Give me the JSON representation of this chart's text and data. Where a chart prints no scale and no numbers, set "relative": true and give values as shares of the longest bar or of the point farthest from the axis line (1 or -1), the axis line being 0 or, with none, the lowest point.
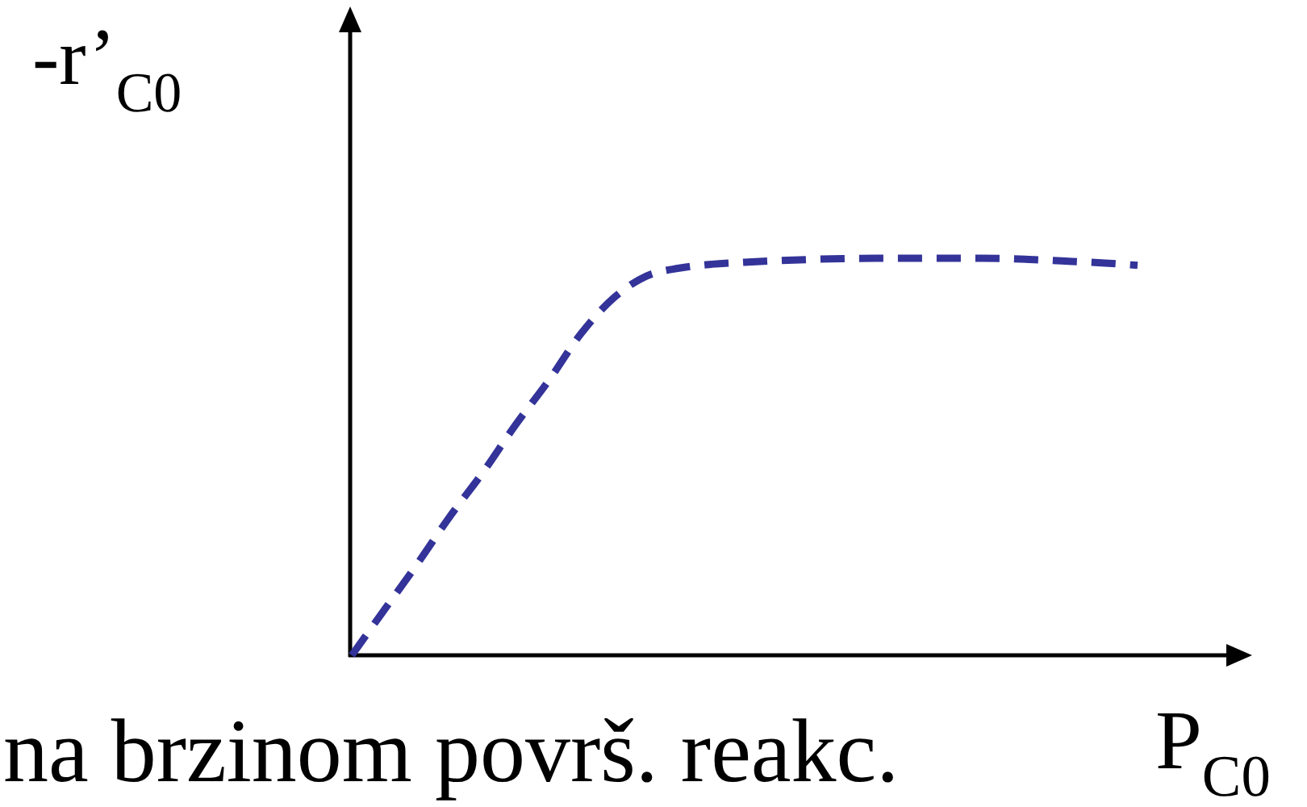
{
  "chart_data": {
    "type": "line",
    "xlabel": "P$_{C0}$",
    "ylabel": "-r’$_{C0}$",
    "annotations": [
      "na brzinom površ. reakc."
    ],
    "categories": [
      null,
      null,
      null,
      null,
      null,
      null,
      null,
      null,
      null,
      null,
      null,
      null,
      null,
      null,
      null,
      null,
      null,
      null,
      null,
      null,
      null,
      null,
      null,
      null,
      null
    ],
    "relative": true,
    "line_style": "dashed",
    "series": [
      {
        "color": "#333399",
        "values": [
          0,
          0.115,
          0.23,
          0.35,
          0.46,
          0.58,
          0.69,
          0.81,
          0.9,
          0.955,
          0.975,
          0.985,
          0.99,
          0.994,
          0.997,
          0.999,
          1,
          1,
          1,
          1,
          0.999,
          0.996,
          0.992,
          0.988,
          0.982
        ]
      }
    ]
  }
}
